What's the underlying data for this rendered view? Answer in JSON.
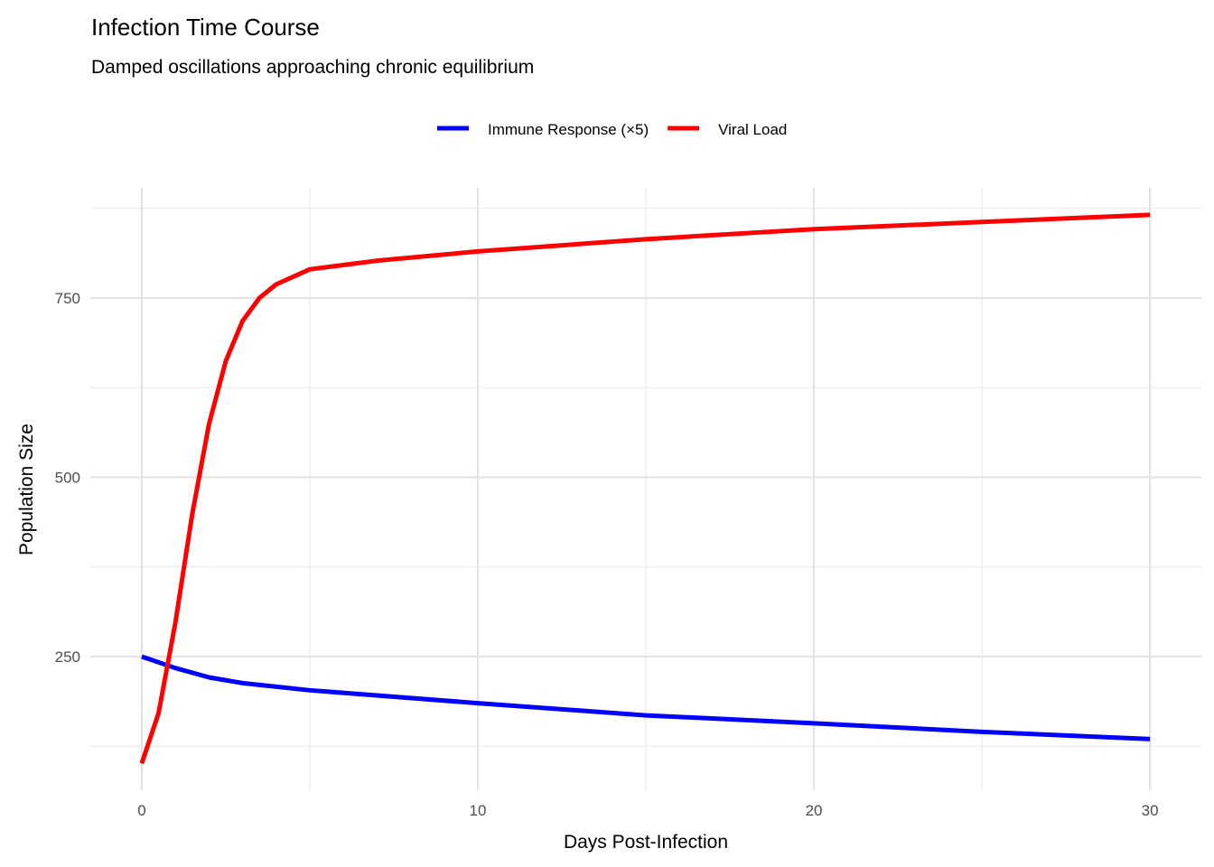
{
  "chart_data": {
    "type": "line",
    "title": "Infection Time Course",
    "subtitle": "Damped oscillations approaching chronic equilibrium",
    "xlabel": "Days Post-Infection",
    "ylabel": "Population Size",
    "xlim": [
      -1.53,
      31.53
    ],
    "ylim": [
      63.6,
      903.6
    ],
    "xticks": [
      0,
      10,
      20,
      30
    ],
    "xticks_minor": [
      5,
      15,
      25
    ],
    "yticks": [
      250,
      500,
      750
    ],
    "yticks_minor": [
      125,
      375,
      625,
      875
    ],
    "grid": true,
    "legend_position": "top",
    "series": [
      {
        "name": "Immune Response (×5)",
        "color": "#0000FF",
        "x": [
          0,
          1,
          2,
          3,
          5,
          10,
          15,
          20,
          25,
          30
        ],
        "y": [
          250,
          234,
          221,
          213,
          203,
          185,
          168,
          157,
          145,
          135
        ]
      },
      {
        "name": "Viral Load",
        "color": "#FF0000",
        "x": [
          0,
          0.5,
          1,
          1.5,
          2,
          2.5,
          3,
          3.5,
          4,
          5,
          7,
          10,
          15,
          20,
          25,
          30
        ],
        "y": [
          101,
          171,
          297,
          448,
          574,
          662,
          718,
          750,
          769,
          790,
          802,
          815,
          832,
          846,
          856,
          866
        ]
      }
    ]
  }
}
